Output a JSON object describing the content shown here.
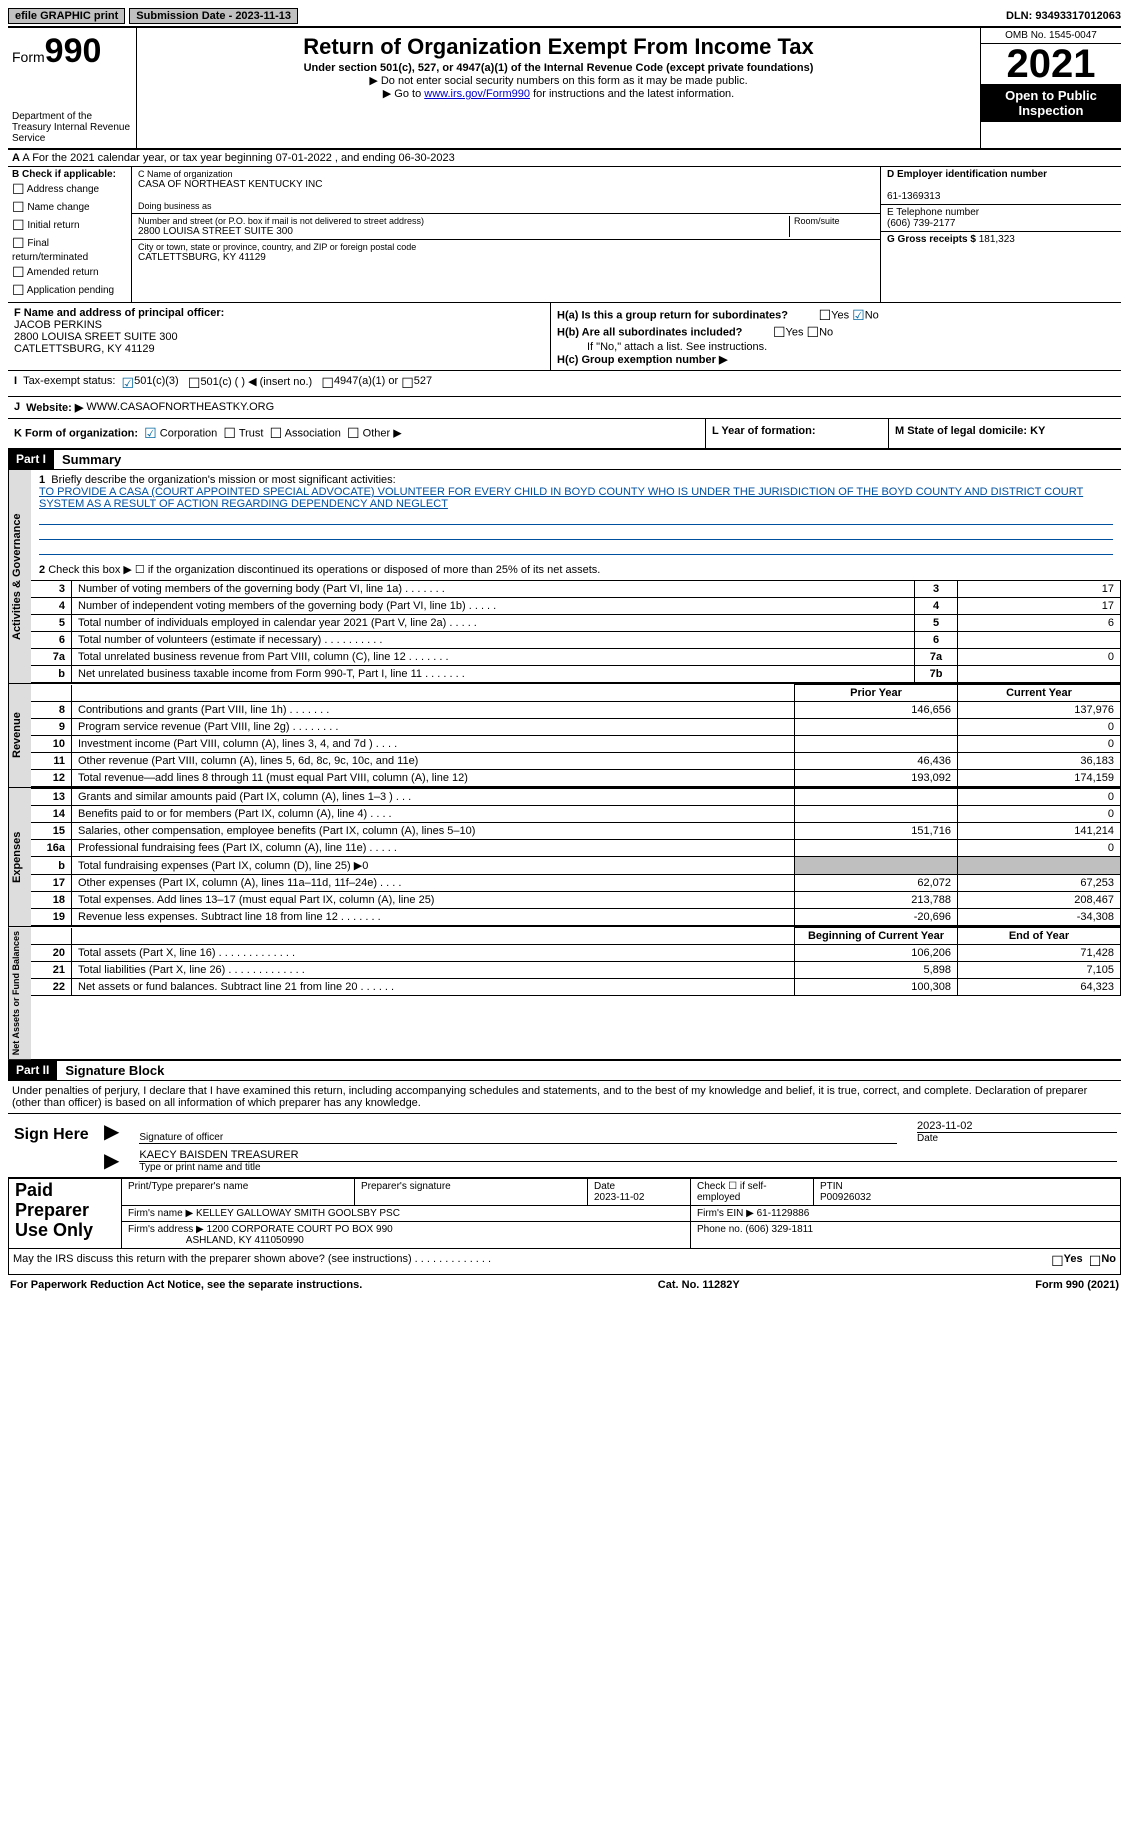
{
  "topbar": {
    "efile": "efile GRAPHIC print",
    "submission_label": "Submission Date - 2023-11-13",
    "dln": "DLN: 93493317012063"
  },
  "header": {
    "form_word": "Form",
    "form_num": "990",
    "dept": "Department of the Treasury Internal Revenue Service",
    "title": "Return of Organization Exempt From Income Tax",
    "subtitle": "Under section 501(c), 527, or 4947(a)(1) of the Internal Revenue Code (except private foundations)",
    "note1": "▶ Do not enter social security numbers on this form as it may be made public.",
    "note2_pre": "▶ Go to ",
    "note2_link": "www.irs.gov/Form990",
    "note2_post": " for instructions and the latest information.",
    "omb": "OMB No. 1545-0047",
    "year": "2021",
    "open": "Open to Public Inspection"
  },
  "rowA": "A For the 2021 calendar year, or tax year beginning 07-01-2022   , and ending 06-30-2023",
  "boxB": {
    "title": "B Check if applicable:",
    "opts": [
      "Address change",
      "Name change",
      "Initial return",
      "Final return/terminated",
      "Amended return",
      "Application pending"
    ]
  },
  "boxC": {
    "name_label": "C Name of organization",
    "name": "CASA OF NORTHEAST KENTUCKY INC",
    "dba_label": "Doing business as",
    "addr_label": "Number and street (or P.O. box if mail is not delivered to street address)",
    "room_label": "Room/suite",
    "addr": "2800 LOUISA STREET SUITE 300",
    "city_label": "City or town, state or province, country, and ZIP or foreign postal code",
    "city": "CATLETTSBURG, KY  41129"
  },
  "boxD": {
    "ein_label": "D Employer identification number",
    "ein": "61-1369313",
    "tel_label": "E Telephone number",
    "tel": "(606) 739-2177",
    "gross_label": "G Gross receipts $",
    "gross": "181,323"
  },
  "boxF": {
    "label": "F  Name and address of principal officer:",
    "name": "JACOB PERKINS",
    "addr1": "2800 LOUISA SREET SUITE 300",
    "addr2": "CATLETTSBURG, KY  41129"
  },
  "boxH": {
    "a": "H(a)  Is this a group return for subordinates?",
    "b": "H(b)  Are all subordinates included?",
    "bnote": "If \"No,\" attach a list. See instructions.",
    "c": "H(c)  Group exemption number ▶",
    "yes": "Yes",
    "no": "No"
  },
  "rowI": {
    "label": "I",
    "text": "Tax-exempt status:",
    "opt1": "501(c)(3)",
    "opt2": "501(c) (  ) ◀ (insert no.)",
    "opt3": "4947(a)(1) or",
    "opt4": "527"
  },
  "rowJ": {
    "label": "J",
    "text": "Website: ▶",
    "val": "WWW.CASAOFNORTHEASTKY.ORG"
  },
  "rowK": "K Form of organization:",
  "rowK_opts": [
    "Corporation",
    "Trust",
    "Association",
    "Other ▶"
  ],
  "rowL": "L Year of formation:",
  "rowM": "M State of legal domicile: KY",
  "part1": {
    "header": "Part I",
    "title": "Summary",
    "q1_label": "1",
    "q1": "Briefly describe the organization's mission or most significant activities:",
    "mission": "TO PROVIDE A CASA (COURT APPOINTED SPECIAL ADVOCATE) VOLUNTEER FOR EVERY CHILD IN BOYD COUNTY WHO IS UNDER THE JURISDICTION OF THE BOYD COUNTY AND DISTRICT COURT SYSTEM AS A RESULT OF ACTION REGARDING DEPENDENCY AND NEGLECT",
    "q2": "Check this box ▶ ☐  if the organization discontinued its operations or disposed of more than 25% of its net assets.",
    "tabs": {
      "gov": "Activities & Governance",
      "rev": "Revenue",
      "exp": "Expenses",
      "net": "Net Assets or Fund Balances"
    },
    "rows_gov": [
      {
        "n": "3",
        "d": "Number of voting members of the governing body (Part VI, line 1a)   .    .    .    .    .    .    .",
        "b": "3",
        "v": "17"
      },
      {
        "n": "4",
        "d": "Number of independent voting members of the governing body (Part VI, line 1b)   .    .    .    .    .",
        "b": "4",
        "v": "17"
      },
      {
        "n": "5",
        "d": "Total number of individuals employed in calendar year 2021 (Part V, line 2a)   .    .    .    .    .",
        "b": "5",
        "v": "6"
      },
      {
        "n": "6",
        "d": "Total number of volunteers (estimate if necessary)    .    .    .    .    .    .    .    .    .    .",
        "b": "6",
        "v": ""
      },
      {
        "n": "7a",
        "d": "Total unrelated business revenue from Part VIII, column (C), line 12    .    .    .    .    .    .    .",
        "b": "7a",
        "v": "0"
      },
      {
        "n": "b",
        "d": "Net unrelated business taxable income from Form 990-T, Part I, line 11    .    .    .    .    .    .    .",
        "b": "7b",
        "v": ""
      }
    ],
    "hdr_prior": "Prior Year",
    "hdr_curr": "Current Year",
    "rows_rev": [
      {
        "n": "8",
        "d": "Contributions and grants (Part VIII, line 1h)    .    .    .    .    .    .    .",
        "p": "146,656",
        "c": "137,976"
      },
      {
        "n": "9",
        "d": "Program service revenue (Part VIII, line 2g)    .    .    .    .    .    .    .    .",
        "p": "",
        "c": "0"
      },
      {
        "n": "10",
        "d": "Investment income (Part VIII, column (A), lines 3, 4, and 7d )    .    .    .    .",
        "p": "",
        "c": "0"
      },
      {
        "n": "11",
        "d": "Other revenue (Part VIII, column (A), lines 5, 6d, 8c, 9c, 10c, and 11e)",
        "p": "46,436",
        "c": "36,183"
      },
      {
        "n": "12",
        "d": "Total revenue—add lines 8 through 11 (must equal Part VIII, column (A), line 12)",
        "p": "193,092",
        "c": "174,159"
      }
    ],
    "rows_exp": [
      {
        "n": "13",
        "d": "Grants and similar amounts paid (Part IX, column (A), lines 1–3 )    .    .    .",
        "p": "",
        "c": "0"
      },
      {
        "n": "14",
        "d": "Benefits paid to or for members (Part IX, column (A), line 4)    .    .    .    .",
        "p": "",
        "c": "0"
      },
      {
        "n": "15",
        "d": "Salaries, other compensation, employee benefits (Part IX, column (A), lines 5–10)",
        "p": "151,716",
        "c": "141,214"
      },
      {
        "n": "16a",
        "d": "Professional fundraising fees (Part IX, column (A), line 11e)    .    .    .    .    .",
        "p": "",
        "c": "0"
      },
      {
        "n": "b",
        "d": "Total fundraising expenses (Part IX, column (D), line 25) ▶0",
        "p": "GRAY",
        "c": "GRAY"
      },
      {
        "n": "17",
        "d": "Other expenses (Part IX, column (A), lines 11a–11d, 11f–24e)    .    .    .    .",
        "p": "62,072",
        "c": "67,253"
      },
      {
        "n": "18",
        "d": "Total expenses. Add lines 13–17 (must equal Part IX, column (A), line 25)",
        "p": "213,788",
        "c": "208,467"
      },
      {
        "n": "19",
        "d": "Revenue less expenses. Subtract line 18 from line 12    .    .    .    .    .    .    .",
        "p": "-20,696",
        "c": "-34,308"
      }
    ],
    "hdr_beg": "Beginning of Current Year",
    "hdr_end": "End of Year",
    "rows_net": [
      {
        "n": "20",
        "d": "Total assets (Part X, line 16)  .    .    .    .    .    .    .    .    .    .    .    .    .",
        "p": "106,206",
        "c": "71,428"
      },
      {
        "n": "21",
        "d": "Total liabilities (Part X, line 26)  .    .    .    .    .    .    .    .    .    .    .    .    .",
        "p": "5,898",
        "c": "7,105"
      },
      {
        "n": "22",
        "d": "Net assets or fund balances. Subtract line 21 from line 20    .    .    .    .    .    .",
        "p": "100,308",
        "c": "64,323"
      }
    ]
  },
  "part2": {
    "header": "Part II",
    "title": "Signature Block",
    "penalty": "Under penalties of perjury, I declare that I have examined this return, including accompanying schedules and statements, and to the best of my knowledge and belief, it is true, correct, and complete. Declaration of preparer (other than officer) is based on all information of which preparer has any knowledge.",
    "sign_here": "Sign Here",
    "sig_officer": "Signature of officer",
    "sig_date": "2023-11-02",
    "date_label": "Date",
    "officer_name": "KAECY BAISDEN  TREASURER",
    "type_name": "Type or print name and title",
    "paid": "Paid Preparer Use Only",
    "prep_name_label": "Print/Type preparer's name",
    "prep_sig_label": "Preparer's signature",
    "prep_date_label": "Date",
    "prep_date": "2023-11-02",
    "check_if": "Check ☐ if self-employed",
    "ptin_label": "PTIN",
    "ptin": "P00926032",
    "firm_name_label": "Firm's name    ▶",
    "firm_name": "KELLEY GALLOWAY SMITH GOOLSBY PSC",
    "firm_ein_label": "Firm's EIN ▶",
    "firm_ein": "61-1129886",
    "firm_addr_label": "Firm's address ▶",
    "firm_addr": "1200 CORPORATE COURT PO BOX 990",
    "firm_city": "ASHLAND, KY  411050990",
    "phone_label": "Phone no.",
    "phone": "(606) 329-1811",
    "may_irs": "May the IRS discuss this return with the preparer shown above? (see instructions)    .    .    .    .    .    .    .    .    .    .    .    .    .",
    "yes": "Yes",
    "no": "No"
  },
  "footer": {
    "pra": "For Paperwork Reduction Act Notice, see the separate instructions.",
    "cat": "Cat. No. 11282Y",
    "form": "Form 990 (2021)"
  }
}
